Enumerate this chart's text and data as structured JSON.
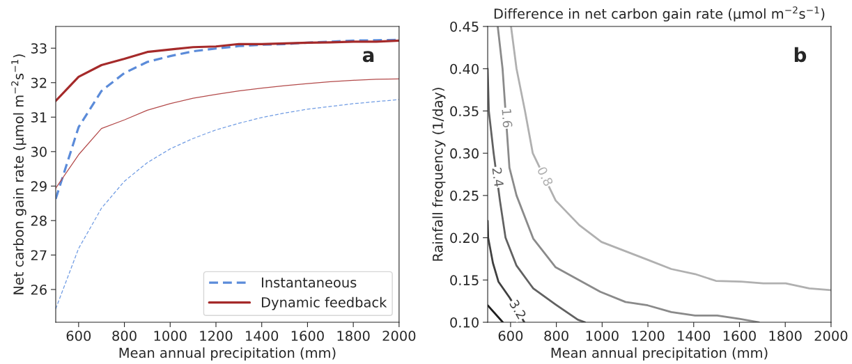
{
  "chart_data": [
    {
      "type": "line",
      "xlabel": "Mean annual precipitation (mm)",
      "ylabel": "Net carbon gain rate (μmol m$^{−2}$s$^{−1}$)",
      "annotations": [
        "a"
      ],
      "x": [
        500,
        600,
        700,
        800,
        900,
        1000,
        1100,
        1200,
        1300,
        1400,
        1500,
        1600,
        1700,
        1800,
        1900,
        2000
      ],
      "series": [
        {
          "name": "Instantaneous",
          "color": "#5b8bd9",
          "line_style": "dashed",
          "values": [
            28.63,
            30.71,
            31.76,
            32.28,
            32.6,
            32.77,
            32.91,
            32.99,
            33.06,
            33.1,
            33.12,
            33.16,
            33.19,
            33.22,
            33.23,
            33.24
          ]
        },
        {
          "name": "Dynamic feedback",
          "color": "#a52a2a",
          "line_style": "solid",
          "values": [
            31.47,
            32.17,
            32.51,
            32.69,
            32.89,
            32.96,
            33.03,
            33.05,
            33.12,
            33.12,
            33.14,
            33.16,
            33.17,
            33.19,
            33.19,
            33.22
          ]
        },
        {
          "color": "#6f9be3",
          "line_style": "dashed",
          "values": [
            25.44,
            27.19,
            28.36,
            29.14,
            29.68,
            30.08,
            30.38,
            30.63,
            30.82,
            30.99,
            31.12,
            31.23,
            31.31,
            31.39,
            31.45,
            31.51
          ]
        },
        {
          "color": "#b34a4a",
          "line_style": "solid",
          "values": [
            28.94,
            29.91,
            30.67,
            30.92,
            31.2,
            31.39,
            31.55,
            31.66,
            31.76,
            31.84,
            31.91,
            31.97,
            32.03,
            32.07,
            32.1,
            32.11
          ]
        }
      ],
      "xlim": [
        500,
        2000
      ],
      "xticks": [
        600,
        800,
        1000,
        1200,
        1400,
        1600,
        1800,
        2000
      ],
      "ylim": [
        25.05,
        33.63
      ],
      "yticks": [
        26,
        27,
        28,
        29,
        30,
        31,
        32,
        33
      ],
      "grid": false,
      "legend": "bottom right"
    },
    {
      "type": "line",
      "title": "Difference in net carbon gain rate (μmol m$^{−2}$s$^{−1}$)",
      "xlabel": "Mean annual precipitation (mm)",
      "ylabel": "Rainfall frequency (1/day)",
      "annotations": [
        "b"
      ],
      "series": [
        {
          "name": "0.8",
          "color": "#b0b0b0",
          "line_style": "solid",
          "x": [
            602,
            626,
            663,
            697,
            797,
            900,
            997,
            1198,
            1302,
            1406,
            1497,
            1607,
            1704,
            1802,
            1905,
            2000
          ],
          "values": [
            0.45,
            0.4,
            0.35,
            0.3,
            0.244,
            0.215,
            0.195,
            0.174,
            0.163,
            0.157,
            0.149,
            0.148,
            0.146,
            0.146,
            0.14,
            0.138
          ]
        },
        {
          "name": "1.6",
          "color": "#8a8a8a",
          "line_style": "solid",
          "x": [
            544,
            565,
            595,
            626,
            699,
            797,
            992,
            1102,
            1199,
            1302,
            1406,
            1503,
            1600,
            1685
          ],
          "values": [
            0.45,
            0.4,
            0.283,
            0.25,
            0.199,
            0.165,
            0.136,
            0.124,
            0.12,
            0.112,
            0.108,
            0.108,
            0.104,
            0.1
          ]
        },
        {
          "name": "2.4",
          "color": "#616161",
          "line_style": "solid",
          "x": [
            500,
            505,
            526,
            554,
            578,
            626,
            699,
            797,
            894,
            925
          ],
          "values": [
            0.4,
            0.35,
            0.3,
            0.243,
            0.2,
            0.167,
            0.14,
            0.121,
            0.103,
            0.1
          ]
        },
        {
          "name": "3.2",
          "color": "#404040",
          "line_style": "solid",
          "x": [
            500,
            502,
            523,
            547,
            596,
            660
          ],
          "values": [
            0.22,
            0.2,
            0.17,
            0.148,
            0.129,
            0.1
          ]
        },
        {
          "color": "#1e1e1e",
          "line_style": "solid",
          "x": [
            500,
            566
          ],
          "values": [
            0.12,
            0.1
          ]
        }
      ],
      "xlim": [
        500,
        2000
      ],
      "xticks": [
        600,
        800,
        1000,
        1200,
        1400,
        1600,
        1800,
        2000
      ],
      "ylim": [
        0.1,
        0.45
      ],
      "yticks": [
        {
          "value": 0.1,
          "label": "0.10"
        },
        {
          "value": 0.15,
          "label": "0.15"
        },
        {
          "value": 0.2,
          "label": "0.20"
        },
        {
          "value": 0.25,
          "label": "0.25"
        },
        {
          "value": 0.3,
          "label": "0.30"
        },
        {
          "value": 0.35,
          "label": "0.35"
        },
        {
          "value": 0.4,
          "label": "0.40"
        },
        {
          "value": 0.45,
          "label": "0.45"
        }
      ],
      "grid": false,
      "legend": false
    }
  ]
}
